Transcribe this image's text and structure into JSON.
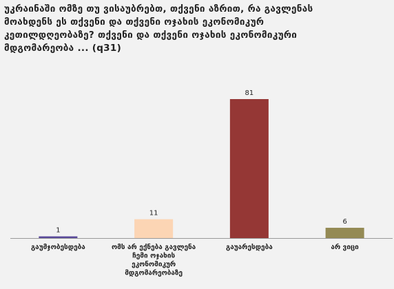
{
  "title_lines": [
    "უკრაინაში ომზე თუ ვისაუბრებთ, თქვენი აზრით, რა გავლენას",
    "მოახდენს ეს თქვენი და თქვენი ოჯახის ეკონომიკურ",
    "კეთილდღეობაზე? თქვენი და თქვენი ოჯახის ეკონომიკური",
    "მდგომარეობა ... (q31)"
  ],
  "colors": {
    "background": "#f2f2f2",
    "axis": "#999999"
  },
  "chart_data": {
    "type": "bar",
    "categories": [
      [
        "გაუმჯობესდება"
      ],
      [
        "ომს არ ექნება გავლენა",
        "ჩემი ოჯახის",
        "ეკონომიკურ",
        "მდგომარეობაზე"
      ],
      [
        "გაუარესდება"
      ],
      [
        "არ ვიცი"
      ]
    ],
    "values": [
      1,
      11,
      81,
      6
    ],
    "data_labels": [
      "1",
      "11",
      "81",
      "6"
    ],
    "bar_colors": [
      "#5a4a9a",
      "#fcd5b4",
      "#953735",
      "#948a54"
    ],
    "ylim": [
      0,
      100
    ]
  }
}
